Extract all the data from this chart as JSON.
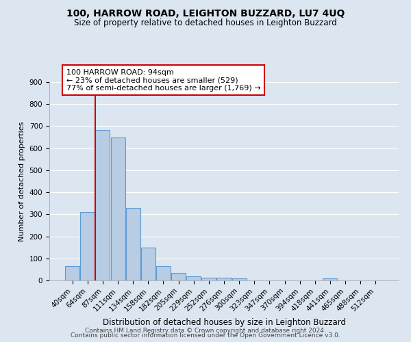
{
  "title1": "100, HARROW ROAD, LEIGHTON BUZZARD, LU7 4UQ",
  "title2": "Size of property relative to detached houses in Leighton Buzzard",
  "xlabel": "Distribution of detached houses by size in Leighton Buzzard",
  "ylabel": "Number of detached properties",
  "bar_labels": [
    "40sqm",
    "64sqm",
    "87sqm",
    "111sqm",
    "134sqm",
    "158sqm",
    "182sqm",
    "205sqm",
    "229sqm",
    "252sqm",
    "276sqm",
    "300sqm",
    "323sqm",
    "347sqm",
    "370sqm",
    "394sqm",
    "418sqm",
    "441sqm",
    "465sqm",
    "488sqm",
    "512sqm"
  ],
  "bar_values": [
    65,
    311,
    682,
    648,
    330,
    150,
    65,
    35,
    20,
    12,
    12,
    10,
    0,
    0,
    0,
    0,
    0,
    10,
    0,
    0,
    0
  ],
  "bar_color": "#b8cce4",
  "bar_edge_color": "#5b9bd5",
  "background_color": "#dce6f1",
  "grid_color": "#ffffff",
  "vline_color": "#cc0000",
  "annotation_line1": "100 HARROW ROAD: 94sqm",
  "annotation_line2": "← 23% of detached houses are smaller (529)",
  "annotation_line3": "77% of semi-detached houses are larger (1,769) →",
  "annotation_box_color": "#ffffff",
  "annotation_box_edge": "#cc0000",
  "footer1": "Contains HM Land Registry data © Crown copyright and database right 2024.",
  "footer2": "Contains public sector information licensed under the Open Government Licence v3.0.",
  "ylim": [
    0,
    900
  ],
  "yticks": [
    0,
    100,
    200,
    300,
    400,
    500,
    600,
    700,
    800,
    900
  ],
  "vline_index": 2
}
